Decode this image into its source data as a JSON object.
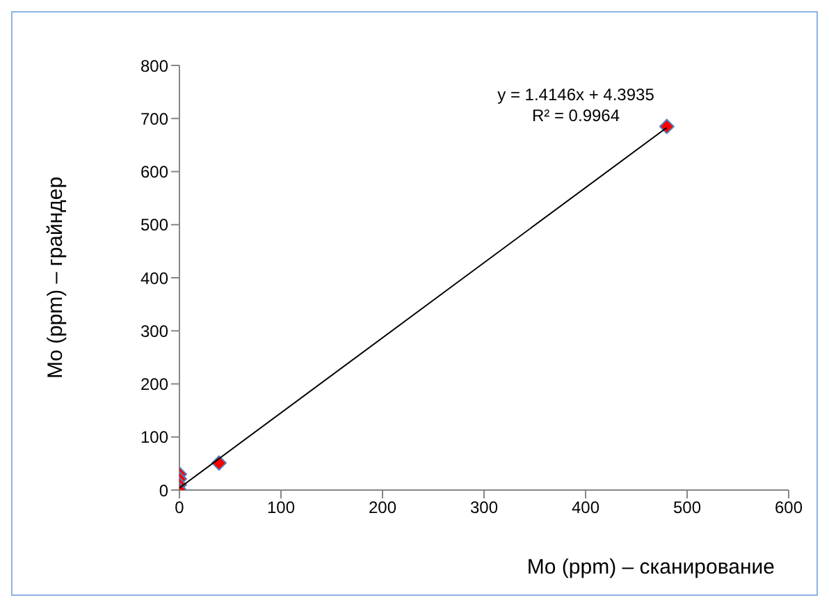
{
  "chart_data": {
    "type": "scatter",
    "xlabel": "Mo (ppm) – сканирование",
    "ylabel": "Mo (ppm) – грайндер",
    "series": [
      {
        "color": "#ff0000",
        "x": [
          0,
          0,
          0,
          0,
          39,
          480
        ],
        "values": [
          30,
          21,
          10,
          0,
          51,
          685
        ],
        "marker": "diamond"
      },
      {
        "type": "line",
        "color": "#000000",
        "x": [
          0,
          480
        ],
        "values": [
          4,
          683
        ],
        "marker": "none"
      }
    ],
    "xlim": [
      0,
      600
    ],
    "xticks": [
      0,
      100,
      200,
      300,
      400,
      500,
      600
    ],
    "ylim": [
      0,
      800
    ],
    "yticks": [
      0,
      100,
      200,
      300,
      400,
      500,
      600,
      700,
      800
    ],
    "grid": false,
    "legend": false,
    "annotations": [
      "y = 1.4146x + 4.3935",
      "R² = 0.9964"
    ]
  }
}
